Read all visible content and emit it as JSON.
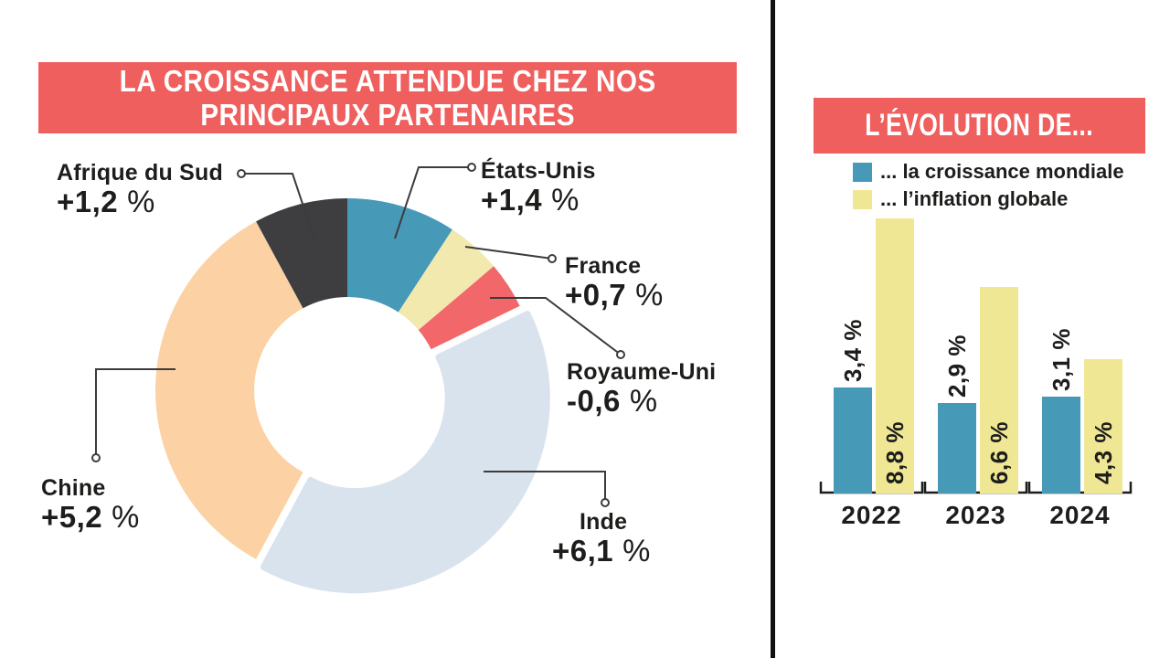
{
  "colors": {
    "accent_red": "#ee5f5e",
    "text_dark": "#1d1d1b",
    "leader_line": "#3c3c3b",
    "divider": "#111111"
  },
  "chart_data": [
    {
      "type": "pie",
      "variant": "donut",
      "title_lines": [
        "LA CROISSANCE ATTENDUE CHEZ NOS",
        "PRINCIPAUX PARTENAIRES"
      ],
      "unit": "%",
      "slices": [
        {
          "label": "États-Unis",
          "value": 1.4,
          "value_text": "+1,4 %",
          "color": "#4799b8"
        },
        {
          "label": "France",
          "value": 0.7,
          "value_text": "+0,7 %",
          "color": "#f1e9ae"
        },
        {
          "label": "Royaume-Uni",
          "value": -0.6,
          "value_text": "-0,6 %",
          "color": "#f2686a"
        },
        {
          "label": "Inde",
          "value": 6.1,
          "value_text": "+6,1 %",
          "color": "#d9e3ee",
          "exploded": true
        },
        {
          "label": "Chine",
          "value": 5.2,
          "value_text": "+5,2 %",
          "color": "#fcd1a3"
        },
        {
          "label": "Afrique du Sud",
          "value": 1.2,
          "value_text": "+1,2 %",
          "color": "#3e3e40"
        }
      ]
    },
    {
      "type": "bar",
      "title": "L’ÉVOLUTION DE...",
      "categories": [
        "2022",
        "2023",
        "2024"
      ],
      "series": [
        {
          "name": "... la croissance mondiale",
          "color": "#4799b8",
          "values": [
            3.4,
            2.9,
            3.1
          ],
          "value_labels": [
            "3,4 %",
            "2,9 %",
            "3,1 %"
          ]
        },
        {
          "name": "... l’inflation globale",
          "color": "#f0e795",
          "values": [
            8.8,
            6.6,
            4.3
          ],
          "value_labels": [
            "8,8 %",
            "6,6 %",
            "4,3 %"
          ]
        }
      ],
      "ylim": [
        0,
        9.2
      ],
      "legend_position": "top"
    }
  ]
}
